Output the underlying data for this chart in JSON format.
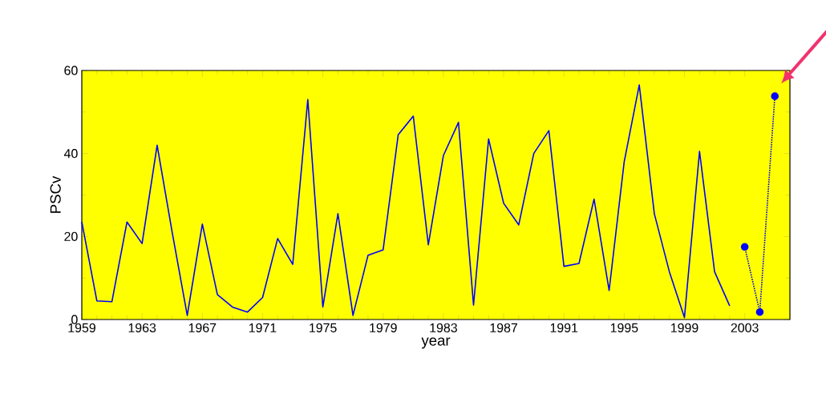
{
  "chart_data": {
    "type": "line",
    "xlabel": "year",
    "ylabel": "PSCv",
    "xlim": [
      1959,
      2006
    ],
    "ylim": [
      0,
      60
    ],
    "xticks": [
      1959,
      1963,
      1967,
      1971,
      1975,
      1979,
      1983,
      1987,
      1991,
      1995,
      1999,
      2003
    ],
    "yticks": [
      0,
      20,
      40,
      60
    ],
    "grid": false,
    "series": [
      {
        "color": "#0000ff",
        "line_style": "solid",
        "marker": "none",
        "x": [
          1959,
          1960,
          1961,
          1962,
          1963,
          1964,
          1965,
          1966,
          1967,
          1968,
          1969,
          1970,
          1971,
          1972,
          1973,
          1974,
          1975,
          1976,
          1977,
          1978,
          1979,
          1980,
          1981,
          1982,
          1983,
          1984,
          1985,
          1986,
          1987,
          1988,
          1989,
          1990,
          1991,
          1992,
          1993,
          1994,
          1995,
          1996,
          1997,
          1998,
          1999,
          2000,
          2001,
          2002
        ],
        "values": [
          23.5,
          4.5,
          4.3,
          23.5,
          18.3,
          42,
          21,
          1,
          23,
          6,
          3,
          1.8,
          5.3,
          19.5,
          13.3,
          53,
          3,
          25.5,
          1,
          15.5,
          16.8,
          44.5,
          49,
          18,
          39.5,
          47.5,
          3.5,
          43.5,
          28,
          22.8,
          40,
          45.5,
          12.8,
          13.5,
          29,
          7,
          38,
          56.5,
          25.5,
          11.5,
          0.5,
          40.5,
          11.5,
          3.3
        ]
      },
      {
        "color": "#0000ff",
        "line_style": "dotted",
        "marker": "circle",
        "x": [
          2003,
          2004,
          2005
        ],
        "values": [
          17.5,
          1.8,
          53.8
        ]
      }
    ]
  }
}
